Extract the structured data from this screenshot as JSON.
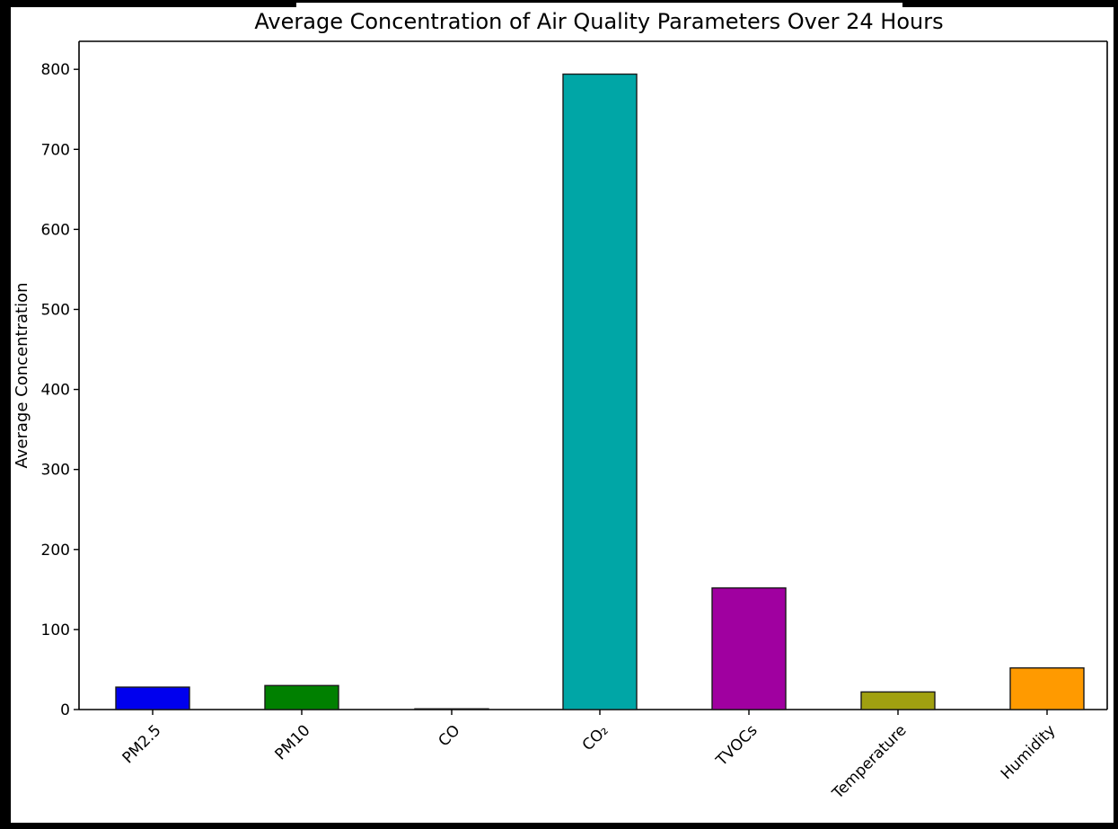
{
  "chart_data": {
    "type": "bar",
    "title": "Average Concentration of Air Quality Parameters Over 24 Hours",
    "xlabel": "",
    "ylabel": "Average Concentration",
    "categories": [
      "PM2.5",
      "PM10",
      "CO",
      "CO₂",
      "TVOCs",
      "Temperature",
      "Humidity"
    ],
    "values": [
      28,
      30,
      0.5,
      794,
      152,
      22,
      52
    ],
    "colors": [
      "#0000ee",
      "#008000",
      "#d62728",
      "#00a6a6",
      "#a000a0",
      "#a0a010",
      "#ff9a00"
    ],
    "ylim": [
      0,
      835
    ],
    "yticks": [
      0,
      100,
      200,
      300,
      400,
      500,
      600,
      700,
      800
    ],
    "grid": false,
    "legend": "none"
  }
}
